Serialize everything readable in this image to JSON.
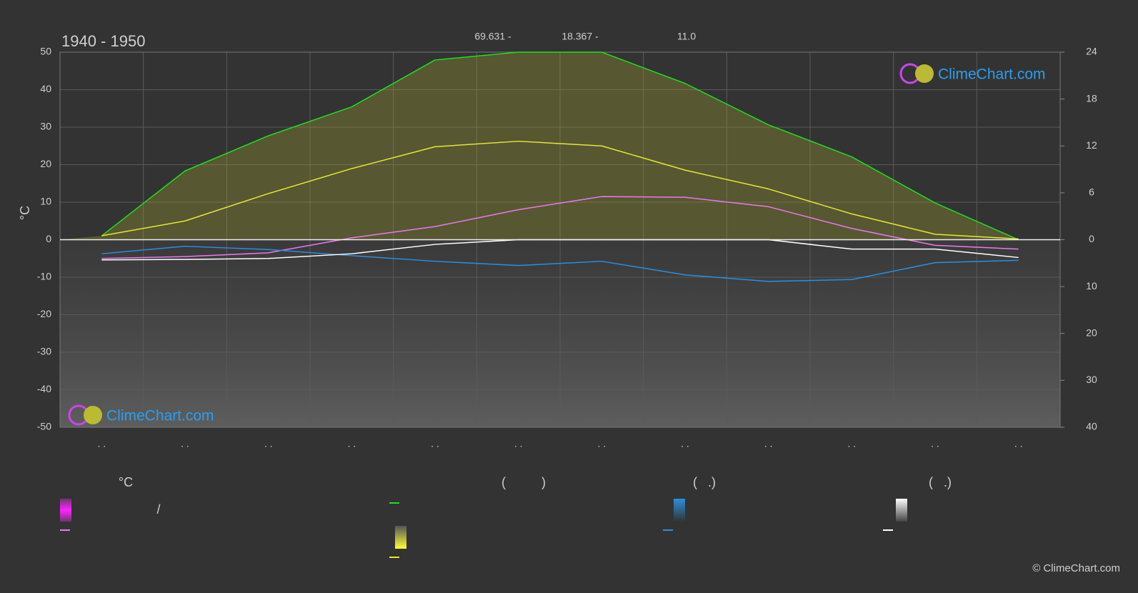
{
  "header": {
    "title": "1940 - 1950",
    "stats": [
      "69.631 -",
      "18.367 -",
      "11.0"
    ]
  },
  "chart_data": {
    "type": "line",
    "categories": [
      ". .",
      ". .",
      ". .",
      ". .",
      ". .",
      ". .",
      ". .",
      ". .",
      ". .",
      ". .",
      ". .",
      ". ."
    ],
    "ylabel": "°C",
    "ylim": [
      -50,
      50
    ],
    "yticks": [
      -50,
      -40,
      -30,
      -20,
      -10,
      0,
      10,
      20,
      30,
      40,
      50
    ],
    "y2lim": [
      0,
      24
    ],
    "y2ticks": [
      0,
      6,
      12,
      18,
      24
    ],
    "y3lim": [
      0,
      40
    ],
    "y3ticks": [
      10,
      20,
      30,
      40
    ],
    "grid": true,
    "series": [
      {
        "color": "#22dd22",
        "axis": "y2",
        "values": [
          0.5,
          8.8,
          13.3,
          17,
          23,
          24,
          24,
          20,
          14.7,
          10.6,
          4.7,
          0
        ]
      },
      {
        "color": "#e6e633",
        "axis": "y2",
        "values": [
          0.5,
          2.4,
          5.9,
          9.1,
          11.9,
          12.6,
          12,
          8.9,
          6.5,
          3.3,
          0.7,
          0.1
        ]
      },
      {
        "color": "#ee77ee",
        "axis": "y",
        "values": [
          -5,
          -4.5,
          -3.5,
          0.5,
          3.5,
          8,
          11.5,
          11.3,
          8.8,
          3,
          -1.5,
          -2.5
        ]
      },
      {
        "color": "#2a8fe0",
        "axis": "y3",
        "values": [
          3,
          1.4,
          2.1,
          3.4,
          4.6,
          5.5,
          4.6,
          7.5,
          8.9,
          8.5,
          4.9,
          4.4
        ]
      },
      {
        "color": "#ffffff",
        "axis": "y3",
        "values": [
          4.3,
          4.2,
          4,
          3,
          1,
          0,
          0,
          0,
          0,
          2,
          2,
          3.8
        ]
      }
    ]
  },
  "legend": {
    "headers": [
      "°C",
      "(          )",
      "(   .)",
      "(   .)"
    ],
    "slash": "/"
  },
  "watermark": "ClimeChart.com",
  "copyright": "© ClimeChart.com"
}
